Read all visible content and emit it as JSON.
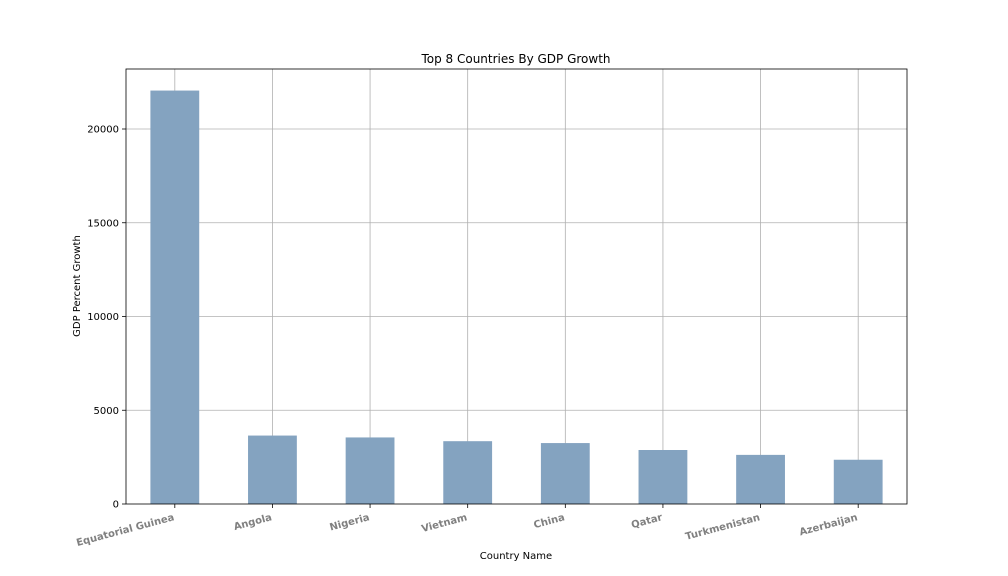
{
  "chart_data": {
    "type": "bar",
    "title": "Top 8 Countries By GDP Growth",
    "xlabel": "Country Name",
    "ylabel": "GDP Percent Growth",
    "categories": [
      "Equatorial Guinea",
      "Angola",
      "Nigeria",
      "Vietnam",
      "China",
      "Qatar",
      "Turkmenistan",
      "Azerbaijan"
    ],
    "values": [
      22050,
      3650,
      3550,
      3350,
      3250,
      2880,
      2620,
      2360
    ],
    "ylim": [
      0,
      23200
    ],
    "yticks": [
      0,
      5000,
      10000,
      15000,
      20000
    ],
    "grid": true,
    "colors": {
      "bar": "#84a3c0",
      "grid": "#b0b0b0",
      "category_label": "#808080"
    }
  }
}
